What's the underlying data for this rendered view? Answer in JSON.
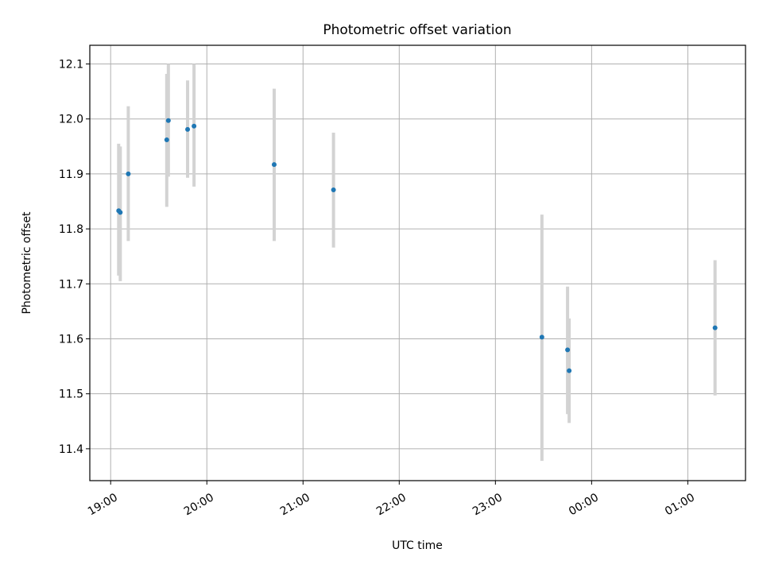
{
  "chart_data": {
    "type": "scatter",
    "title": "Photometric offset variation",
    "xlabel": "UTC time",
    "ylabel": "Photometric offset",
    "x_ticks": [
      "19:00",
      "20:00",
      "21:00",
      "22:00",
      "23:00",
      "00:00",
      "01:00"
    ],
    "y_ticks": [
      "11.4",
      "11.5",
      "11.6",
      "11.7",
      "11.8",
      "11.9",
      "12.0",
      "12.1"
    ],
    "xlim": [
      "18:47",
      "01:36"
    ],
    "ylim": [
      11.342,
      12.134
    ],
    "grid": true,
    "colors": {
      "point": "#1f77b4",
      "errorbar": "#d3d3d3",
      "grid": "#b0b0b0"
    },
    "series": [
      {
        "points": [
          {
            "time": "19:05",
            "y": 11.833,
            "yerr_low": 11.715,
            "yerr_high": 11.955
          },
          {
            "time": "19:06",
            "y": 11.83,
            "yerr_low": 11.705,
            "yerr_high": 11.95
          },
          {
            "time": "19:11",
            "y": 11.9,
            "yerr_low": 11.778,
            "yerr_high": 12.023
          },
          {
            "time": "19:35",
            "y": 11.962,
            "yerr_low": 11.84,
            "yerr_high": 12.082
          },
          {
            "time": "19:36",
            "y": 11.997,
            "yerr_low": 11.895,
            "yerr_high": 12.1
          },
          {
            "time": "19:48",
            "y": 11.981,
            "yerr_low": 11.893,
            "yerr_high": 12.07
          },
          {
            "time": "19:52",
            "y": 11.987,
            "yerr_low": 11.877,
            "yerr_high": 12.1
          },
          {
            "time": "20:42",
            "y": 11.917,
            "yerr_low": 11.778,
            "yerr_high": 12.055
          },
          {
            "time": "21:19",
            "y": 11.871,
            "yerr_low": 11.766,
            "yerr_high": 11.975
          },
          {
            "time": "23:29",
            "y": 11.603,
            "yerr_low": 11.378,
            "yerr_high": 11.826
          },
          {
            "time": "23:45",
            "y": 11.58,
            "yerr_low": 11.463,
            "yerr_high": 11.695
          },
          {
            "time": "23:46",
            "y": 11.542,
            "yerr_low": 11.447,
            "yerr_high": 11.637
          },
          {
            "time": "01:17",
            "y": 11.62,
            "yerr_low": 11.497,
            "yerr_high": 11.743
          }
        ]
      }
    ]
  }
}
